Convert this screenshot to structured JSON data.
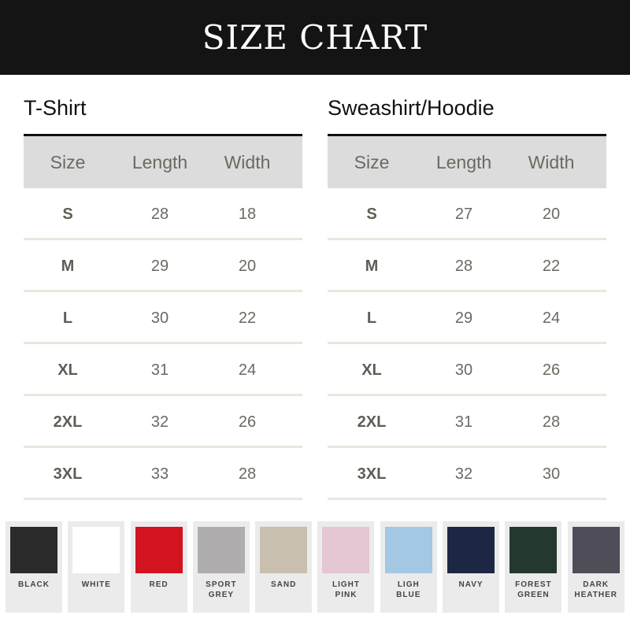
{
  "title": "SIZE CHART",
  "tables": [
    {
      "title": "T-Shirt",
      "headers": [
        "Size",
        "Length",
        "Width"
      ],
      "rows": [
        [
          "S",
          "28",
          "18"
        ],
        [
          "M",
          "29",
          "20"
        ],
        [
          "L",
          "30",
          "22"
        ],
        [
          "XL",
          "31",
          "24"
        ],
        [
          "2XL",
          "32",
          "26"
        ],
        [
          "3XL",
          "33",
          "28"
        ]
      ]
    },
    {
      "title": "Sweashirt/Hoodie",
      "headers": [
        "Size",
        "Length",
        "Width"
      ],
      "rows": [
        [
          "S",
          "27",
          "20"
        ],
        [
          "M",
          "28",
          "22"
        ],
        [
          "L",
          "29",
          "24"
        ],
        [
          "XL",
          "30",
          "26"
        ],
        [
          "2XL",
          "31",
          "28"
        ],
        [
          "3XL",
          "32",
          "30"
        ]
      ]
    }
  ],
  "colors": [
    {
      "label": "BLACK",
      "hex": "#2a2a2a"
    },
    {
      "label": "WHITE",
      "hex": "#ffffff"
    },
    {
      "label": "RED",
      "hex": "#d3131f"
    },
    {
      "label": "SPORT\nGREY",
      "hex": "#afadae"
    },
    {
      "label": "SAND",
      "hex": "#c9bfae"
    },
    {
      "label": "LIGHT\nPINK",
      "hex": "#e4c6d4"
    },
    {
      "label": "LIGH\nBLUE",
      "hex": "#a4c7e3"
    },
    {
      "label": "NAVY",
      "hex": "#1d2744"
    },
    {
      "label": "FOREST\nGREEN",
      "hex": "#24382e"
    },
    {
      "label": "DARK\nHEATHER",
      "hex": "#4e4d58"
    }
  ]
}
